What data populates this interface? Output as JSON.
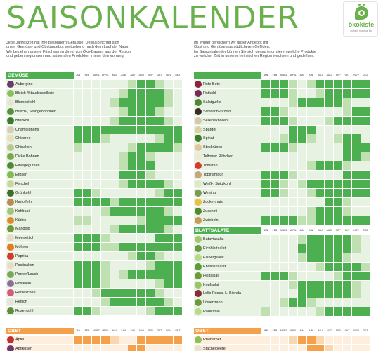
{
  "page_title": "SAISONKALENDER",
  "logo": {
    "name": "ökokiste",
    "tagline": "einfach regional bio"
  },
  "intro_left": [
    "Jede Jahreszeit hat ihre besondern Genüsse. Deshalb richtet sich",
    "unser Gemüse- und Obstangebot weitgehend nach dem Lauf der Natur.",
    "Wir beziehen unsere Frischwaren direkt von Öko-Bauern aus der Region",
    "und geben regionalen und saisonalen Produkten immer den Vorrang."
  ],
  "intro_right": [
    "Im Winter bereichern wir unser Angebot mit",
    "Obst und Gemüse aus südlicheren Gefilden.",
    "Im Saisonkalender können Sie sich genau informieren welche Produkte",
    "zu welcher Zeit in unserer heimischen Region wachsen und gedeihen."
  ],
  "months": [
    "JAN",
    "FEB",
    "MÄRZ",
    "APRIL",
    "MAI",
    "JUNI",
    "JULI",
    "AUG",
    "SEP",
    "OKT",
    "NOV",
    "DEZ"
  ],
  "legend_note": "Each item carries 12 month states: 2 = main season, 1 = shoulder season, 0 = not in season",
  "colors": {
    "green_main": "#4caf50",
    "green_light": "#bfe0b1",
    "green_bg": "#e8f2e2",
    "orange_main": "#f5a04a",
    "title_green": "#6ab04c"
  },
  "sections": [
    {
      "title": "GEMÜSE",
      "items": [
        {
          "name": "Aubergine",
          "seasons": [
            0,
            0,
            0,
            0,
            0,
            0,
            1,
            2,
            2,
            1,
            0,
            0
          ]
        },
        {
          "name": "Bleich-/Staudensellerie",
          "seasons": [
            0,
            0,
            0,
            0,
            0,
            1,
            2,
            2,
            2,
            2,
            1,
            0
          ]
        },
        {
          "name": "Blumenkohl",
          "seasons": [
            0,
            0,
            0,
            0,
            1,
            2,
            2,
            2,
            2,
            2,
            1,
            0
          ]
        },
        {
          "name": "Busch-, Stangenbohnen",
          "seasons": [
            0,
            0,
            0,
            0,
            0,
            1,
            2,
            2,
            2,
            1,
            0,
            0
          ]
        },
        {
          "name": "Brokkoli",
          "seasons": [
            0,
            0,
            0,
            0,
            1,
            2,
            2,
            2,
            2,
            2,
            1,
            0
          ]
        },
        {
          "name": "Champignons",
          "seasons": [
            2,
            2,
            2,
            2,
            2,
            2,
            2,
            2,
            2,
            2,
            2,
            2
          ]
        },
        {
          "name": "Chicoree",
          "seasons": [
            2,
            2,
            2,
            1,
            0,
            0,
            0,
            0,
            0,
            1,
            2,
            2
          ]
        },
        {
          "name": "Chinakohl",
          "seasons": [
            1,
            0,
            0,
            0,
            0,
            0,
            1,
            2,
            2,
            2,
            2,
            1
          ]
        },
        {
          "name": "Dicke Bohnen",
          "seasons": [
            0,
            0,
            0,
            0,
            0,
            1,
            2,
            2,
            1,
            0,
            0,
            0
          ]
        },
        {
          "name": "Einlegegurken",
          "seasons": [
            0,
            0,
            0,
            0,
            0,
            1,
            2,
            2,
            2,
            0,
            0,
            0
          ]
        },
        {
          "name": "Erbsen",
          "seasons": [
            0,
            0,
            0,
            0,
            0,
            2,
            2,
            2,
            1,
            0,
            0,
            0
          ]
        },
        {
          "name": "Fenchel",
          "seasons": [
            0,
            0,
            0,
            0,
            0,
            1,
            2,
            2,
            2,
            2,
            1,
            0
          ]
        },
        {
          "name": "Grünkohl",
          "seasons": [
            2,
            2,
            1,
            0,
            0,
            0,
            0,
            0,
            0,
            1,
            2,
            2
          ]
        },
        {
          "name": "Kartoffeln",
          "seasons": [
            2,
            2,
            2,
            2,
            1,
            2,
            2,
            2,
            2,
            2,
            2,
            2
          ]
        },
        {
          "name": "Kohlrabi",
          "seasons": [
            0,
            0,
            0,
            1,
            2,
            2,
            2,
            2,
            2,
            2,
            1,
            0
          ]
        },
        {
          "name": "Kürbis",
          "seasons": [
            1,
            1,
            0,
            0,
            0,
            0,
            0,
            1,
            2,
            2,
            2,
            2
          ]
        },
        {
          "name": "Mangold",
          "seasons": [
            0,
            0,
            0,
            0,
            1,
            2,
            2,
            2,
            2,
            2,
            1,
            0
          ]
        },
        {
          "name": "Meerrettich",
          "seasons": [
            2,
            2,
            2,
            1,
            0,
            0,
            0,
            0,
            0,
            2,
            2,
            2
          ]
        },
        {
          "name": "Möhren",
          "seasons": [
            2,
            2,
            2,
            1,
            1,
            2,
            2,
            2,
            2,
            2,
            2,
            2
          ]
        },
        {
          "name": "Paprika",
          "seasons": [
            0,
            0,
            0,
            0,
            0,
            0,
            1,
            2,
            2,
            1,
            0,
            0
          ]
        },
        {
          "name": "Pastinaken",
          "seasons": [
            2,
            2,
            2,
            1,
            0,
            0,
            0,
            0,
            1,
            2,
            2,
            2
          ]
        },
        {
          "name": "Porree/Lauch",
          "seasons": [
            2,
            2,
            2,
            1,
            0,
            1,
            2,
            2,
            2,
            2,
            2,
            2
          ]
        },
        {
          "name": "Postelein",
          "seasons": [
            2,
            2,
            2,
            1,
            0,
            0,
            0,
            0,
            0,
            1,
            2,
            2
          ]
        },
        {
          "name": "Radieschen",
          "seasons": [
            0,
            0,
            1,
            2,
            2,
            2,
            2,
            2,
            2,
            1,
            0,
            0
          ]
        },
        {
          "name": "Rettich",
          "seasons": [
            0,
            0,
            0,
            1,
            2,
            2,
            2,
            2,
            2,
            2,
            1,
            0
          ]
        },
        {
          "name": "Rosenkohl",
          "seasons": [
            2,
            2,
            1,
            0,
            0,
            0,
            0,
            0,
            1,
            2,
            2,
            2
          ]
        }
      ]
    },
    {
      "title": "",
      "items": [
        {
          "name": "Rote Bete",
          "seasons": [
            2,
            2,
            2,
            1,
            0,
            1,
            2,
            2,
            2,
            2,
            2,
            2
          ]
        },
        {
          "name": "Rotkohl",
          "seasons": [
            2,
            2,
            2,
            1,
            0,
            0,
            1,
            2,
            2,
            2,
            2,
            2
          ]
        },
        {
          "name": "Salatgurke",
          "seasons": [
            0,
            0,
            0,
            1,
            2,
            2,
            2,
            2,
            2,
            1,
            0,
            0
          ]
        },
        {
          "name": "Schwarzwurzeln",
          "seasons": [
            2,
            2,
            1,
            0,
            0,
            0,
            0,
            0,
            0,
            1,
            2,
            2
          ]
        },
        {
          "name": "Sellerieknollen",
          "seasons": [
            2,
            2,
            2,
            1,
            0,
            0,
            0,
            1,
            2,
            2,
            2,
            2
          ]
        },
        {
          "name": "Spargel",
          "seasons": [
            0,
            0,
            0,
            2,
            2,
            2,
            0,
            0,
            0,
            0,
            0,
            0
          ]
        },
        {
          "name": "Spinat",
          "seasons": [
            0,
            0,
            1,
            2,
            2,
            1,
            0,
            0,
            1,
            2,
            2,
            0
          ]
        },
        {
          "name": "Steckrüben",
          "seasons": [
            2,
            2,
            2,
            1,
            0,
            0,
            0,
            0,
            0,
            2,
            2,
            2
          ]
        },
        {
          "name": "Teltower Rübchen",
          "seasons": [
            0,
            0,
            0,
            0,
            0,
            0,
            0,
            0,
            0,
            2,
            2,
            1
          ]
        },
        {
          "name": "Tomaten",
          "seasons": [
            0,
            0,
            0,
            0,
            0,
            1,
            2,
            2,
            2,
            1,
            0,
            0
          ]
        },
        {
          "name": "Topinambur",
          "seasons": [
            2,
            2,
            2,
            1,
            0,
            0,
            0,
            0,
            0,
            2,
            2,
            2
          ]
        },
        {
          "name": "Weiß-, Spitzkohl",
          "seasons": [
            2,
            2,
            1,
            0,
            1,
            2,
            2,
            2,
            2,
            2,
            2,
            2
          ]
        },
        {
          "name": "Wirsing",
          "seasons": [
            2,
            2,
            1,
            0,
            0,
            1,
            2,
            2,
            2,
            2,
            2,
            2
          ]
        },
        {
          "name": "Zuckermais",
          "seasons": [
            0,
            0,
            0,
            0,
            0,
            0,
            0,
            2,
            2,
            1,
            0,
            0
          ]
        },
        {
          "name": "Zucchini",
          "seasons": [
            0,
            0,
            0,
            0,
            0,
            1,
            2,
            2,
            2,
            1,
            0,
            0
          ]
        },
        {
          "name": "Zwiebeln",
          "seasons": [
            2,
            2,
            2,
            2,
            1,
            1,
            2,
            2,
            2,
            2,
            2,
            2
          ]
        }
      ]
    },
    {
      "title": "BLATTSALATE",
      "items": [
        {
          "name": "Bataviasalat",
          "seasons": [
            0,
            0,
            0,
            0,
            1,
            2,
            2,
            2,
            2,
            2,
            1,
            0
          ]
        },
        {
          "name": "Eichblattsalat",
          "seasons": [
            0,
            0,
            0,
            0,
            2,
            2,
            2,
            2,
            2,
            2,
            1,
            0
          ]
        },
        {
          "name": "Eisbergsalat",
          "seasons": [
            0,
            0,
            0,
            0,
            1,
            2,
            2,
            2,
            2,
            1,
            0,
            0
          ]
        },
        {
          "name": "Endiviensalat",
          "seasons": [
            0,
            0,
            0,
            0,
            0,
            0,
            1,
            2,
            2,
            2,
            2,
            1
          ]
        },
        {
          "name": "Feldsalat",
          "seasons": [
            2,
            2,
            2,
            1,
            0,
            0,
            0,
            0,
            1,
            2,
            2,
            2
          ]
        },
        {
          "name": "Kopfsalat",
          "seasons": [
            0,
            0,
            0,
            1,
            2,
            2,
            2,
            2,
            2,
            2,
            1,
            0
          ]
        },
        {
          "name": "Lollo Rossa, L. Bionda",
          "seasons": [
            0,
            0,
            0,
            0,
            2,
            2,
            2,
            2,
            2,
            2,
            1,
            0
          ]
        },
        {
          "name": "Löwenzahn",
          "seasons": [
            0,
            0,
            1,
            2,
            2,
            1,
            0,
            0,
            0,
            0,
            0,
            0
          ]
        },
        {
          "name": "Radicchio",
          "seasons": [
            1,
            0,
            0,
            0,
            0,
            0,
            1,
            2,
            2,
            2,
            2,
            2
          ]
        }
      ]
    },
    {
      "title": "OBST",
      "items": [
        {
          "name": "Äpfel",
          "seasons": [
            2,
            2,
            2,
            2,
            1,
            0,
            0,
            2,
            2,
            2,
            2,
            2
          ]
        },
        {
          "name": "Aprikosen",
          "seasons": [
            0,
            0,
            0,
            0,
            0,
            0,
            2,
            2,
            0,
            0,
            0,
            0
          ]
        }
      ]
    },
    {
      "title": "OBST",
      "items": [
        {
          "name": "Rhabarber",
          "seasons": [
            0,
            0,
            0,
            1,
            2,
            2,
            1,
            0,
            0,
            0,
            0,
            0
          ]
        },
        {
          "name": "Stachelbeere",
          "seasons": [
            0,
            0,
            0,
            0,
            0,
            2,
            2,
            1,
            0,
            0,
            0,
            0
          ]
        }
      ]
    }
  ]
}
